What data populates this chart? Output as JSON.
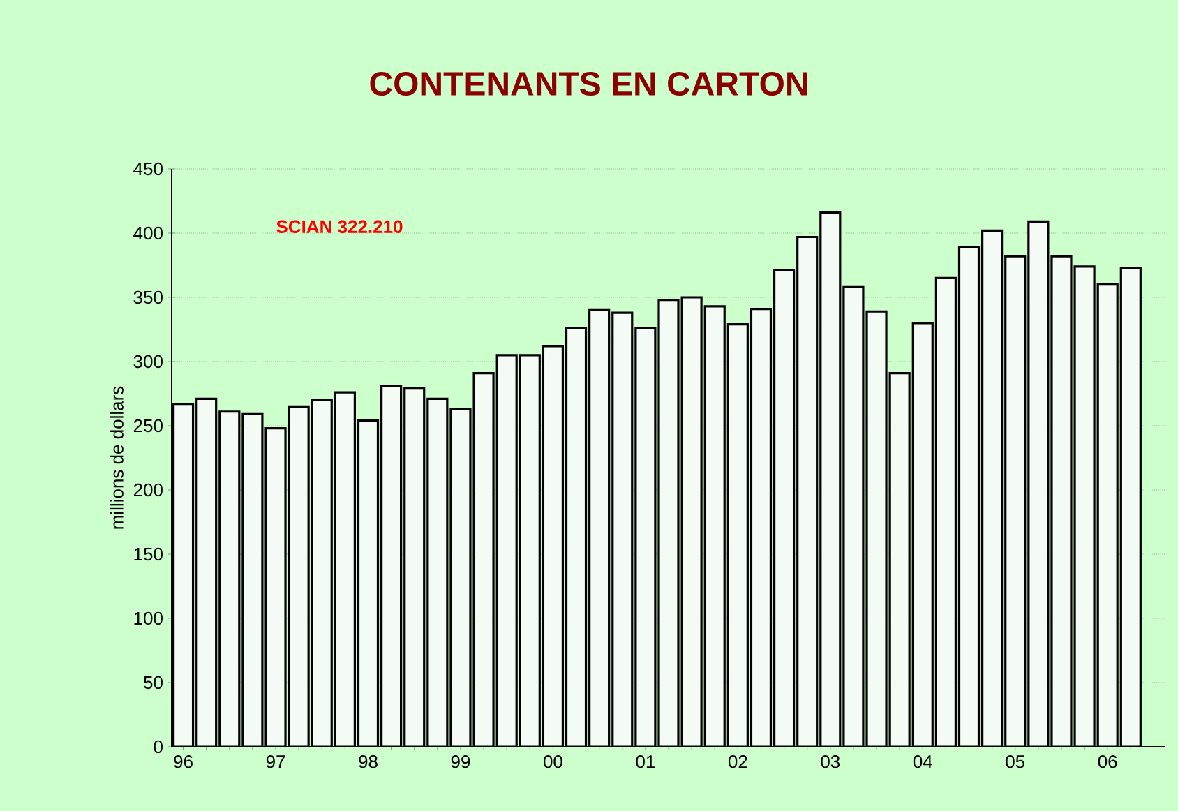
{
  "chart_data": {
    "type": "bar",
    "title": "CONTENANTS EN CARTON",
    "ylabel": "millions de dollars",
    "annotations": [
      "SCIAN 322.210"
    ],
    "categories": [
      "96",
      null,
      null,
      null,
      "97",
      null,
      null,
      null,
      "98",
      null,
      null,
      null,
      "99",
      null,
      null,
      null,
      "00",
      null,
      null,
      null,
      "01",
      null,
      null,
      null,
      "02",
      null,
      null,
      null,
      "03",
      null,
      null,
      null,
      "04",
      null,
      null,
      null,
      "05",
      null,
      null,
      null,
      "06",
      null
    ],
    "values": [
      267,
      271,
      261,
      259,
      248,
      265,
      270,
      276,
      254,
      281,
      279,
      271,
      263,
      291,
      305,
      305,
      312,
      326,
      340,
      338,
      326,
      348,
      350,
      343,
      329,
      341,
      371,
      397,
      416,
      358,
      339,
      291,
      330,
      365,
      389,
      402,
      382,
      409,
      382,
      374,
      360,
      373
    ],
    "color": "#f4faf4",
    "ylim": [
      0,
      450
    ],
    "yticks": [
      0,
      50,
      100,
      150,
      200,
      250,
      300,
      350,
      400,
      450
    ],
    "grid": "y"
  }
}
